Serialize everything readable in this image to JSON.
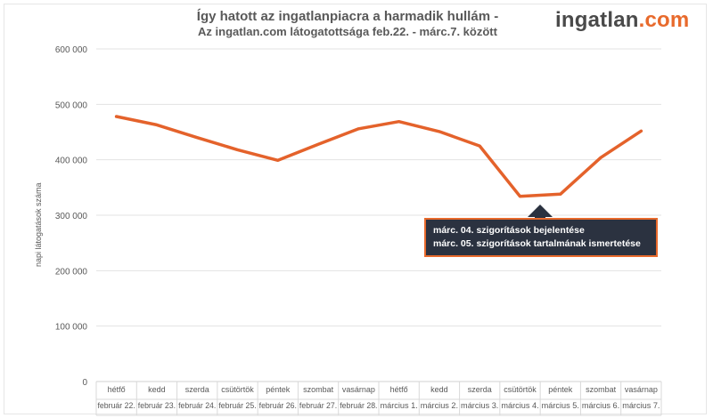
{
  "header": {
    "title_line1": "Így hatott az ingatlanpiacra a harmadik hullám -",
    "title_line2": "Az ingatlan.com látogatottsága feb.22. - márc.7. között"
  },
  "logo": {
    "part1": "ingatlan",
    "part2": ".com"
  },
  "annotation": {
    "line1": "márc. 04. szigorítások bejelentése",
    "line2": "márc. 05. szigorítások tartalmának ismertetése"
  },
  "chart_data": {
    "type": "line",
    "ylabel": "napi látogatások száma",
    "ylim": [
      0,
      600000
    ],
    "yticks": [
      0,
      100000,
      200000,
      300000,
      400000,
      500000,
      600000
    ],
    "ytick_labels": [
      "0",
      "100 000",
      "200 000",
      "300 000",
      "400 000",
      "500 000",
      "600 000"
    ],
    "grid": true,
    "line_color": "#e4622b",
    "days": [
      "hétfő",
      "kedd",
      "szerda",
      "csütörtök",
      "péntek",
      "szombat",
      "vasárnap",
      "hétfő",
      "kedd",
      "szerda",
      "csütörtök",
      "péntek",
      "szombat",
      "vasárnap"
    ],
    "dates": [
      "február 22.",
      "február 23.",
      "február 24.",
      "február 25.",
      "február 26.",
      "február 27.",
      "február 28.",
      "március 1.",
      "március 2.",
      "március 3.",
      "március 4.",
      "március 5.",
      "március 6.",
      "március 7."
    ],
    "series": [
      {
        "values": [
          478000,
          463000,
          440000,
          418000,
          399000,
          428000,
          456000,
          469000,
          451000,
          425000,
          334000,
          338000,
          404000,
          452000
        ]
      }
    ]
  }
}
